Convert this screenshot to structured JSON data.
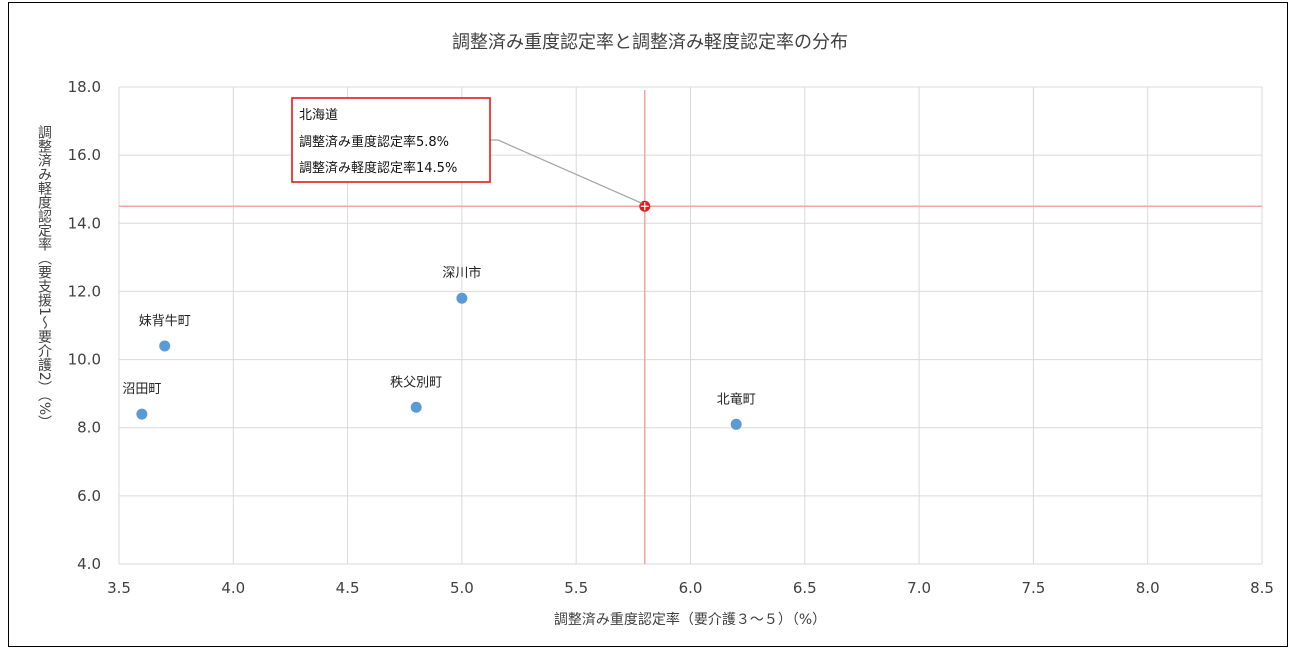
{
  "chart_data": {
    "type": "scatter",
    "title": "調整済み重度認定率と調整済み軽度認定率の分布",
    "xlabel": "調整済み重度認定率（要介護３～５）（%）",
    "ylabel": "調整済み軽度認定率（要支援1～要介護2）（%）",
    "xlim": [
      3.5,
      8.5
    ],
    "ylim": [
      4.0,
      18.0
    ],
    "x_ticks": [
      "3.5",
      "4.0",
      "4.5",
      "5.0",
      "5.5",
      "6.0",
      "6.5",
      "7.0",
      "7.5",
      "8.0",
      "8.5"
    ],
    "y_ticks": [
      "4.0",
      "6.0",
      "8.0",
      "10.0",
      "12.0",
      "14.0",
      "16.0",
      "18.0"
    ],
    "grid": true,
    "points": [
      {
        "label": "妹背牛町",
        "x": 3.7,
        "y": 10.4
      },
      {
        "label": "沼田町",
        "x": 3.6,
        "y": 8.4
      },
      {
        "label": "秩父別町",
        "x": 4.8,
        "y": 8.6
      },
      {
        "label": "深川市",
        "x": 5.0,
        "y": 11.8
      },
      {
        "label": "北竜町",
        "x": 6.2,
        "y": 8.1
      }
    ],
    "reference": {
      "label": "北海道",
      "x": 5.8,
      "y": 14.5,
      "line1": "調整済み重度認定率5.8%",
      "line2": "調整済み軽度認定率14.5%"
    },
    "colors": {
      "point": "#5b9bd5",
      "reference_point": "#e8191a",
      "reference_lines": "#f4a4a4",
      "callout_border": "#e8191a",
      "grid": "#d9d9d9"
    }
  }
}
